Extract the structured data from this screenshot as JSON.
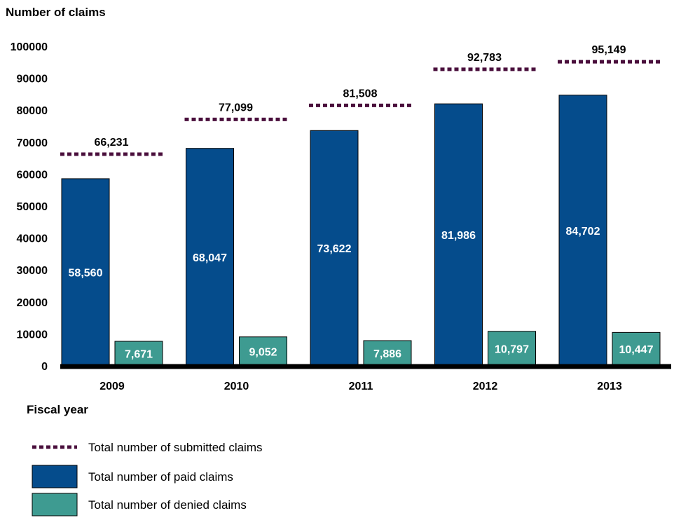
{
  "chart_data": {
    "type": "bar",
    "ylabel": "Number of claims",
    "xlabel": "Fiscal year",
    "ylim": [
      0,
      100000
    ],
    "yticks": [
      0,
      10000,
      20000,
      30000,
      40000,
      50000,
      60000,
      70000,
      80000,
      90000,
      100000
    ],
    "ytick_labels": [
      "0",
      "10000",
      "20000",
      "30000",
      "40000",
      "50000",
      "60000",
      "70000",
      "80000",
      "90000",
      "100000"
    ],
    "categories": [
      "2009",
      "2010",
      "2011",
      "2012",
      "2013"
    ],
    "series": [
      {
        "name": "Total number of paid claims",
        "kind": "bar",
        "color": "#054c8c",
        "values": [
          58560,
          68047,
          73622,
          81986,
          84702
        ],
        "labels": [
          "58,560",
          "68,047",
          "73,622",
          "81,986",
          "84,702"
        ]
      },
      {
        "name": "Total number of denied claims",
        "kind": "bar",
        "color": "#3e9b91",
        "values": [
          7671,
          9052,
          7886,
          10797,
          10447
        ],
        "labels": [
          "7,671",
          "9,052",
          "7,886",
          "10,797",
          "10,447"
        ]
      },
      {
        "name": "Total number of submitted claims",
        "kind": "dotted-line",
        "color": "#4a0f3c",
        "values": [
          66231,
          77099,
          81508,
          92783,
          95149
        ],
        "labels": [
          "66,231",
          "77,099",
          "81,508",
          "92,783",
          "95,149"
        ]
      }
    ],
    "legend": {
      "placement": "bottom-left",
      "order": [
        "Total number of submitted claims",
        "Total number of paid claims",
        "Total number of denied claims"
      ]
    },
    "grid": false
  }
}
